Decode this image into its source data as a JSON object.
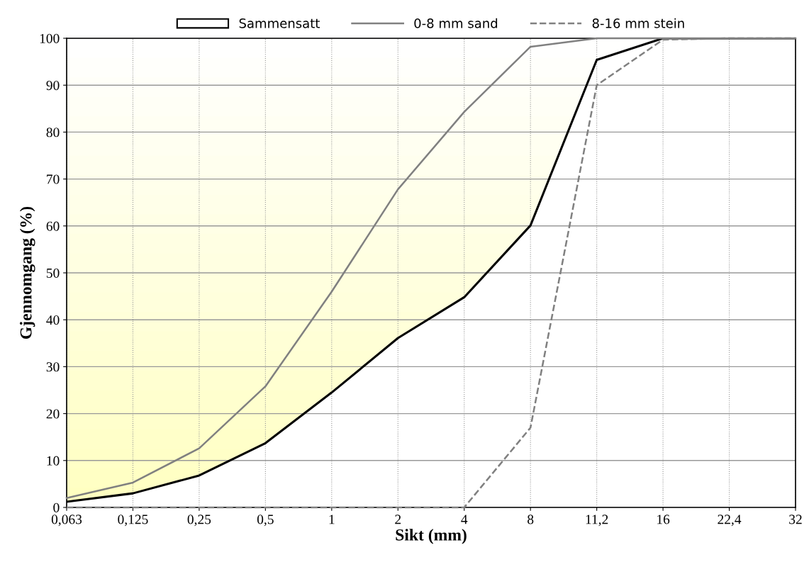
{
  "chart_data": {
    "type": "line",
    "xlabel": "Sikt (mm)",
    "ylabel": "Gjennomgang (%)",
    "categories": [
      "0,063",
      "0,125",
      "0,25",
      "0,5",
      "1",
      "2",
      "4",
      "8",
      "11,2",
      "16",
      "22,4",
      "32"
    ],
    "series": [
      {
        "name": "Sammensatt",
        "color": "#000000",
        "values": [
          1.2,
          3,
          6.8,
          13.7,
          24.5,
          36.1,
          44.8,
          60.1,
          95.4,
          100,
          100,
          100
        ]
      },
      {
        "name": "0-8 mm sand",
        "type": "line",
        "color": "#808080",
        "line_style": "solid",
        "values": [
          2,
          5.3,
          12.6,
          25.8,
          46,
          67.8,
          84.3,
          98.2,
          100,
          100,
          100,
          100
        ]
      },
      {
        "name": "8-16 mm stein",
        "color": "#808080",
        "line_style": "dashed",
        "values": [
          0,
          0,
          0,
          0,
          0,
          0,
          0,
          17,
          90,
          99.7,
          100,
          100
        ]
      }
    ],
    "ylim": [
      0,
      100
    ],
    "yticks": [
      0,
      10,
      20,
      30,
      40,
      50,
      60,
      70,
      80,
      90,
      100
    ],
    "grid": true,
    "legend": "top",
    "marker": "none"
  }
}
